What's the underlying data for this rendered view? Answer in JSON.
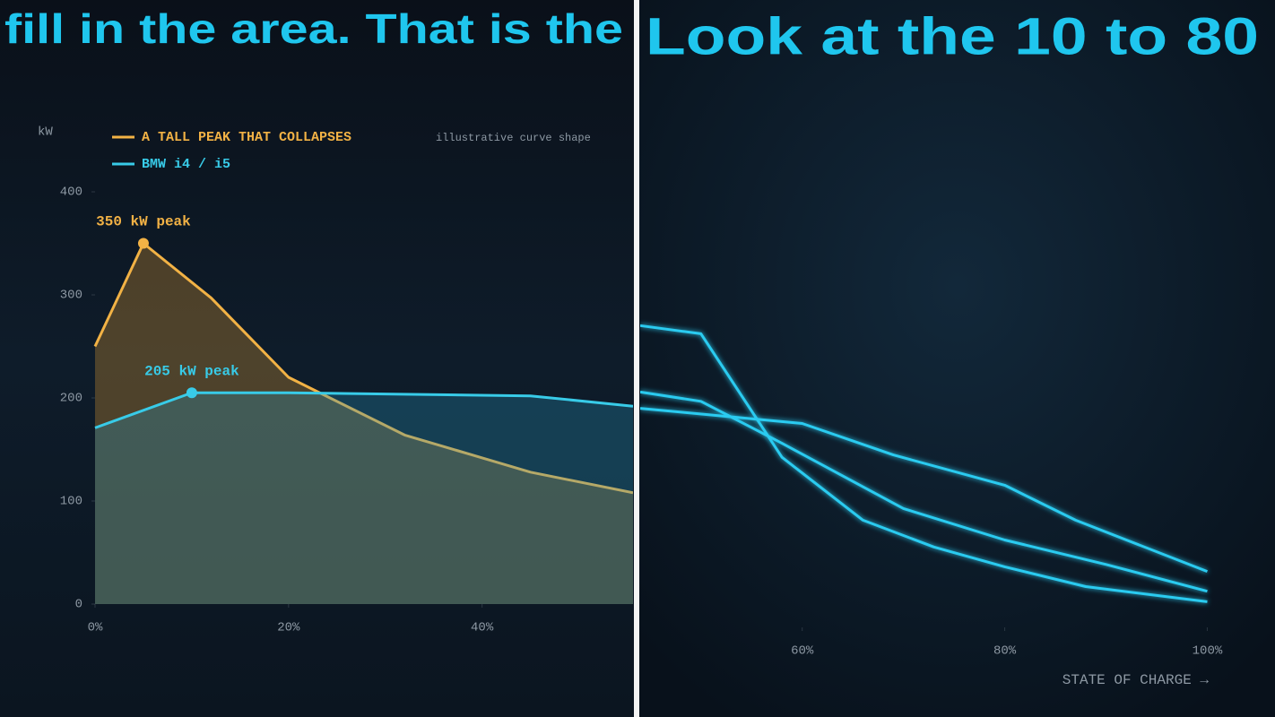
{
  "chart_data": [
    {
      "type": "line",
      "caption": "fill in the area. That is the",
      "ylabel": "kW",
      "area": true,
      "note": "illustrative curve shape",
      "xlim": [
        0,
        55.6
      ],
      "ylim": [
        0,
        400
      ],
      "xticks": [
        {
          "value": 0,
          "label": "0%"
        },
        {
          "value": 20,
          "label": "20%"
        },
        {
          "value": 40,
          "label": "40%"
        }
      ],
      "yticks": [
        0,
        100,
        200,
        300,
        400
      ],
      "series": [
        {
          "name": "A TALL PEAK THAT COLLAPSES",
          "color": "#f2b245",
          "peak_label": "350 kW peak",
          "x": [
            0,
            5,
            12,
            20,
            32,
            45,
            55.6
          ],
          "values": [
            250,
            350,
            297,
            220,
            164,
            128,
            108
          ]
        },
        {
          "name": "BMW i4 / i5",
          "color": "#38cbe8",
          "peak_label": "205 kW peak",
          "x": [
            0,
            10,
            20,
            45,
            55.6
          ],
          "values": [
            171,
            205,
            205,
            202,
            192
          ]
        }
      ]
    },
    {
      "type": "line",
      "caption": "Look at the 10 to 80",
      "xlabel": "STATE OF CHARGE →",
      "area": false,
      "xlim": [
        44,
        106.6
      ],
      "ylim": [
        0,
        400
      ],
      "xticks": [
        {
          "value": 60,
          "label": "60%"
        },
        {
          "value": 80,
          "label": "80%"
        },
        {
          "value": 100,
          "label": "100%"
        }
      ],
      "series": [
        {
          "color": "#2ccbf0",
          "x": [
            44,
            50,
            58,
            66,
            73,
            80,
            88,
            100
          ],
          "values": [
            259,
            252,
            146,
            92,
            69,
            52,
            35,
            22
          ]
        },
        {
          "color": "#2ccbf0",
          "x": [
            44,
            50,
            58,
            70,
            80,
            90,
            100
          ],
          "values": [
            202,
            194,
            158,
            102,
            75,
            54,
            31
          ]
        },
        {
          "color": "#2ccbf0",
          "x": [
            44,
            60,
            69,
            80,
            87,
            100
          ],
          "values": [
            188,
            175,
            148,
            122,
            92,
            48
          ]
        }
      ]
    }
  ]
}
